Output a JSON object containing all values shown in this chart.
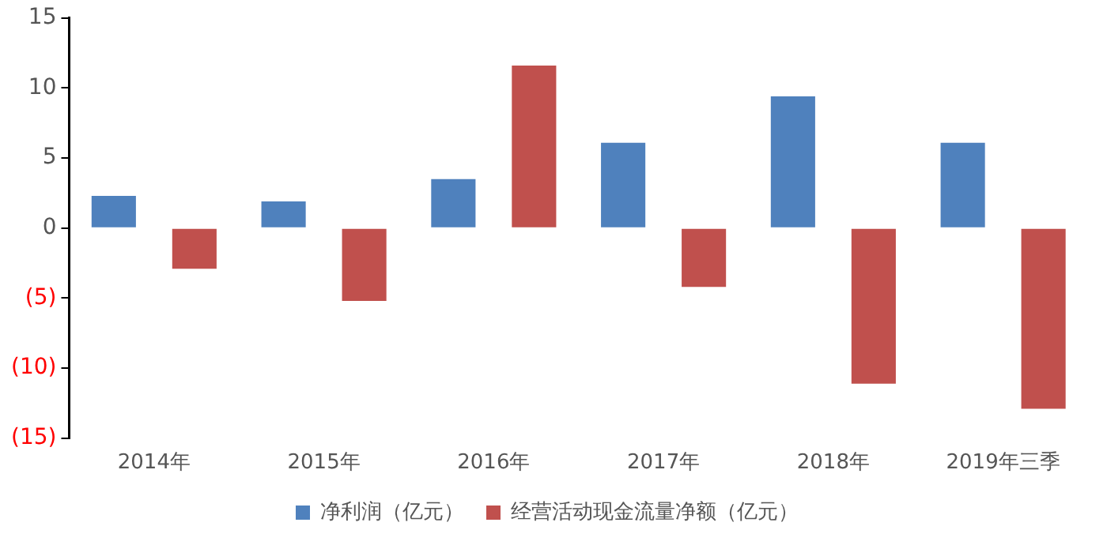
{
  "chart_data": {
    "type": "bar",
    "categories": [
      "2014年",
      "2015年",
      "2016年",
      "2017年",
      "2018年",
      "2019年三季"
    ],
    "series": [
      {
        "name": "净利润（亿元）",
        "color": "#4f81bd",
        "values": [
          2.3,
          1.9,
          3.5,
          6.1,
          9.4,
          6.1
        ]
      },
      {
        "name": "经营活动现金流量净额（亿元）",
        "color": "#c0504d",
        "values": [
          -2.9,
          -5.2,
          11.6,
          -4.2,
          -11.1,
          -12.9
        ]
      }
    ],
    "ylim": [
      -15,
      15
    ],
    "yticks": [
      {
        "value": -15,
        "label": "(15)"
      },
      {
        "value": -10,
        "label": "(10)"
      },
      {
        "value": -5,
        "label": "(5)"
      },
      0,
      5,
      10,
      15
    ],
    "grid": false,
    "legend": "bottom"
  }
}
